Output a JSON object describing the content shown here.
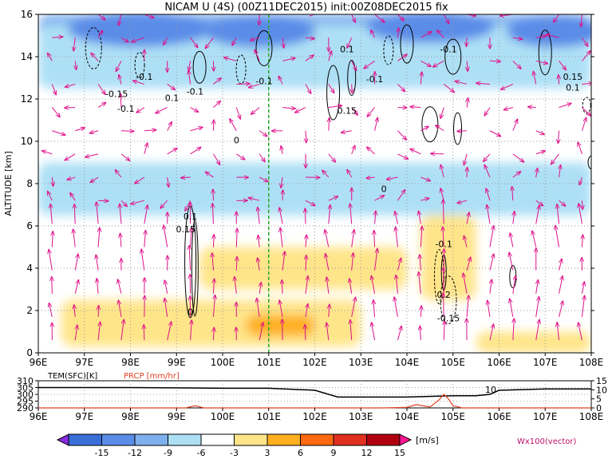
{
  "title": "NICAM U (4S) (00Z11DEC2015) init:00Z08DEC2015 fix",
  "main": {
    "ylabel": "ALTITUDE [km]",
    "yticks": [
      "0",
      "2",
      "4",
      "6",
      "8",
      "10",
      "12",
      "14",
      "16"
    ],
    "xticks": [
      "96E",
      "97E",
      "98E",
      "99E",
      "100E",
      "101E",
      "102E",
      "103E",
      "104E",
      "105E",
      "106E",
      "107E",
      "108E"
    ],
    "contour_labels": [
      {
        "text": "-0.1",
        "lon": 98.3,
        "alt": 12.9
      },
      {
        "text": "-0.15",
        "lon": 97.7,
        "alt": 12.1
      },
      {
        "text": "-0.1",
        "lon": 97.9,
        "alt": 11.4
      },
      {
        "text": "0.1",
        "lon": 98.9,
        "alt": 11.9
      },
      {
        "text": "-0.1",
        "lon": 99.4,
        "alt": 12.2
      },
      {
        "text": "-0.1",
        "lon": 100.9,
        "alt": 12.7
      },
      {
        "text": "-0.1",
        "lon": 103.3,
        "alt": 12.8
      },
      {
        "text": "0.1",
        "lon": 102.7,
        "alt": 14.2
      },
      {
        "text": "0.15",
        "lon": 102.7,
        "alt": 11.3
      },
      {
        "text": "-0.1",
        "lon": 104.9,
        "alt": 14.2
      },
      {
        "text": "0.15",
        "lon": 107.6,
        "alt": 12.9
      },
      {
        "text": "0.1",
        "lon": 107.6,
        "alt": 12.4
      },
      {
        "text": "0",
        "lon": 100.3,
        "alt": 9.9
      },
      {
        "text": "0",
        "lon": 103.5,
        "alt": 7.6
      },
      {
        "text": "0.1",
        "lon": 99.3,
        "alt": 6.3
      },
      {
        "text": "0.15",
        "lon": 99.2,
        "alt": 5.7
      },
      {
        "text": "0",
        "lon": 99.3,
        "alt": 1.8
      },
      {
        "text": "-0.1",
        "lon": 104.8,
        "alt": 5.0
      },
      {
        "text": "0.2",
        "lon": 104.8,
        "alt": 2.6
      },
      {
        "text": "-0.15",
        "lon": 104.9,
        "alt": 1.5
      }
    ]
  },
  "sub": {
    "label_tem": "TEM(SFC)[K]",
    "label_prcp": "PRCP [mm/hr]",
    "yticks_left": [
      "310",
      "305",
      "300",
      "295",
      "290"
    ],
    "yticks_right": [
      "15",
      "10",
      "5",
      "0"
    ],
    "xticks": [
      "96E",
      "97E",
      "98E",
      "99E",
      "100E",
      "101E",
      "102E",
      "103E",
      "104E",
      "105E",
      "106E",
      "107E",
      "108E"
    ],
    "annotation": "10"
  },
  "colorbar": {
    "labels": [
      "-15",
      "-12",
      "-9",
      "-6",
      "-3",
      "3",
      "6",
      "9",
      "12",
      "15"
    ],
    "unit": "[m/s]",
    "colors": [
      "#8a2be2",
      "#3a6fd8",
      "#5a8ce8",
      "#7fb0ee",
      "#aee0f5",
      "#ffffff",
      "#ffe58a",
      "#ffb020",
      "#ff6a10",
      "#e03020",
      "#b00010",
      "#ff1493"
    ]
  },
  "vector_label": "Wx100(vector)",
  "colors": {
    "vector": "#e0108a",
    "prcp": "#e04020",
    "temp": "#000000",
    "marker_line": "#22aa22"
  },
  "chart_data": [
    {
      "type": "heatmap",
      "title": "NICAM U (4S) (00Z11DEC2015) init:00Z08DEC2015 fix",
      "xlabel": "",
      "ylabel": "ALTITUDE [km]",
      "xlim": [
        96,
        108
      ],
      "ylim": [
        0,
        16
      ],
      "variable": "U [m/s]",
      "overlays": [
        "W contours (-0.15 to 0.2)",
        "Wx100 vectors"
      ],
      "vertical_marker_lon": 101.0,
      "regions": [
        {
          "value_range": "-9 to -6",
          "lon": [
            96,
            108
          ],
          "alt": [
            13.5,
            16
          ]
        },
        {
          "value_range": "-6 to -3",
          "lon": [
            96,
            108
          ],
          "alt": [
            12.5,
            15.5
          ]
        },
        {
          "value_range": "-6 to -3",
          "lon": [
            96,
            108
          ],
          "alt": [
            6.5,
            9
          ]
        },
        {
          "value_range": "3 to 6",
          "lon": [
            99.5,
            104
          ],
          "alt": [
            3,
            5
          ]
        },
        {
          "value_range": "3 to 6",
          "lon": [
            96.5,
            103
          ],
          "alt": [
            0.3,
            2.5
          ]
        },
        {
          "value_range": "6 to 9",
          "lon": [
            100.5,
            102
          ],
          "alt": [
            0.8,
            1.8
          ]
        },
        {
          "value_range": "3 to 6",
          "lon": [
            104.3,
            105.5
          ],
          "alt": [
            2.5,
            6.5
          ]
        },
        {
          "value_range": "3 to 6",
          "lon": [
            105.5,
            108
          ],
          "alt": [
            0,
            1
          ]
        }
      ]
    },
    {
      "type": "line",
      "xlim": [
        96,
        108
      ],
      "series": [
        {
          "name": "TEM(SFC)[K]",
          "ylim": [
            290,
            310
          ],
          "x": [
            96,
            98,
            100,
            101,
            102,
            102.5,
            103,
            104,
            105,
            105.5,
            105.8,
            106,
            107,
            108
          ],
          "y": [
            305,
            305,
            304.5,
            304.5,
            303,
            298,
            298,
            298,
            299,
            299,
            300,
            303,
            304,
            304
          ]
        },
        {
          "name": "PRCP [mm/hr]",
          "ylim": [
            0,
            15
          ],
          "x": [
            96,
            99.2,
            99.4,
            99.6,
            101,
            103.5,
            104,
            104.2,
            104.5,
            104.7,
            104.8,
            104.9,
            105,
            105.2,
            106,
            108
          ],
          "y": [
            0,
            0,
            1.2,
            0,
            0,
            0,
            0.3,
            1.8,
            0.5,
            4.5,
            7.5,
            5,
            1.2,
            0,
            0,
            0
          ]
        }
      ]
    }
  ]
}
